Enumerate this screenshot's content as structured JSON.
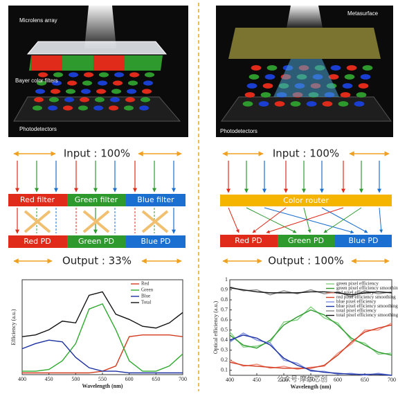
{
  "left_panel": {
    "labels": [
      "Microlens array",
      "Bayer color filters",
      "Photodetectors"
    ],
    "input": "Input : 100%",
    "filters": [
      "Red filter",
      "Green filter",
      "Blue filter"
    ],
    "pds": [
      "Red PD",
      "Green PD",
      "Blue PD"
    ],
    "output": "Output : 33%"
  },
  "right_panel": {
    "labels": [
      "Metasurface",
      "Photodetectors"
    ],
    "input": "Input : 100%",
    "router": "Color router",
    "pds": [
      "Red PD",
      "Green PD",
      "Blue PD"
    ],
    "output": "Output : 100%"
  },
  "watermark": "公众号·摩尔芯创",
  "chart_data": [
    {
      "type": "line",
      "x_label": "Wavelength (nm)",
      "y_label": "Efficiency (a.u.)",
      "x": [
        400,
        425,
        450,
        475,
        500,
        525,
        550,
        575,
        600,
        625,
        650,
        675,
        700
      ],
      "series": [
        {
          "name": "Red",
          "color": "#d23a1e",
          "values": [
            0.01,
            0.01,
            0.01,
            0.01,
            0.01,
            0.01,
            0.02,
            0.05,
            0.22,
            0.23,
            0.23,
            0.23,
            0.22
          ]
        },
        {
          "name": "Green",
          "color": "#2eaa2e",
          "values": [
            0.02,
            0.02,
            0.03,
            0.08,
            0.18,
            0.38,
            0.41,
            0.26,
            0.08,
            0.02,
            0.02,
            0.05,
            0.12
          ]
        },
        {
          "name": "Blue",
          "color": "#1a2fa0",
          "values": [
            0.15,
            0.18,
            0.2,
            0.19,
            0.1,
            0.04,
            0.02,
            0.02,
            0.01,
            0.01,
            0.01,
            0.01,
            0.01
          ]
        },
        {
          "name": "Total",
          "color": "#111111",
          "values": [
            0.22,
            0.23,
            0.26,
            0.31,
            0.3,
            0.46,
            0.48,
            0.35,
            0.32,
            0.28,
            0.27,
            0.3,
            0.36
          ]
        }
      ],
      "xlim": [
        400,
        700
      ],
      "ylim": [
        0,
        0.55
      ],
      "xticks": [
        400,
        450,
        500,
        550,
        600,
        650,
        700
      ],
      "legend": "top-right"
    },
    {
      "type": "line",
      "x_label": "Wavelength (nm)",
      "y_label": "Optical efficiency (a.u.)",
      "x": [
        400,
        425,
        450,
        475,
        500,
        525,
        550,
        575,
        600,
        625,
        650,
        675,
        700
      ],
      "series": [
        {
          "name": "green pixel efficiency",
          "color": "#7fcf7f",
          "values": [
            0.48,
            0.33,
            0.34,
            0.38,
            0.58,
            0.6,
            0.73,
            0.62,
            0.57,
            0.4,
            0.37,
            0.26,
            0.27
          ]
        },
        {
          "name": "green pixel efficiency smoothing",
          "color": "#2e9a2e",
          "values": [
            0.45,
            0.35,
            0.32,
            0.4,
            0.55,
            0.63,
            0.7,
            0.65,
            0.55,
            0.42,
            0.35,
            0.28,
            0.25
          ]
        },
        {
          "name": "red pixel efficiency",
          "color": "#f08a7a",
          "values": [
            0.2,
            0.14,
            0.16,
            0.12,
            0.14,
            0.11,
            0.13,
            0.14,
            0.27,
            0.36,
            0.5,
            0.5,
            0.57
          ]
        },
        {
          "name": "red pixel efficiency smoothing",
          "color": "#d23a1e",
          "values": [
            0.18,
            0.15,
            0.14,
            0.13,
            0.12,
            0.12,
            0.12,
            0.15,
            0.25,
            0.38,
            0.48,
            0.52,
            0.55
          ]
        },
        {
          "name": "blue pixel efficiency",
          "color": "#7f8fe0",
          "values": [
            0.38,
            0.47,
            0.4,
            0.37,
            0.2,
            0.17,
            0.09,
            0.09,
            0.06,
            0.07,
            0.05,
            0.07,
            0.05
          ]
        },
        {
          "name": "blue pixel efficiency smoothing",
          "color": "#1a2fa0",
          "values": [
            0.4,
            0.45,
            0.42,
            0.35,
            0.22,
            0.15,
            0.1,
            0.08,
            0.07,
            0.06,
            0.06,
            0.06,
            0.05
          ]
        },
        {
          "name": "total pixel efficiency",
          "color": "#888888",
          "values": [
            0.93,
            0.89,
            0.9,
            0.85,
            0.89,
            0.86,
            0.9,
            0.86,
            0.88,
            0.83,
            0.89,
            0.86,
            0.88
          ]
        },
        {
          "name": "total pixel efficiency smoothing",
          "color": "#111111",
          "values": [
            0.92,
            0.9,
            0.88,
            0.87,
            0.87,
            0.87,
            0.88,
            0.88,
            0.87,
            0.85,
            0.87,
            0.88,
            0.87
          ]
        }
      ],
      "xlim": [
        400,
        700
      ],
      "ylim": [
        0.05,
        1.0
      ],
      "xticks": [
        400,
        450,
        500,
        550,
        600,
        650,
        700
      ],
      "yticks": [
        0.1,
        0.2,
        0.3,
        0.4,
        0.5,
        0.6,
        0.7,
        0.8,
        0.9,
        1.0
      ],
      "legend": "top-right"
    }
  ]
}
